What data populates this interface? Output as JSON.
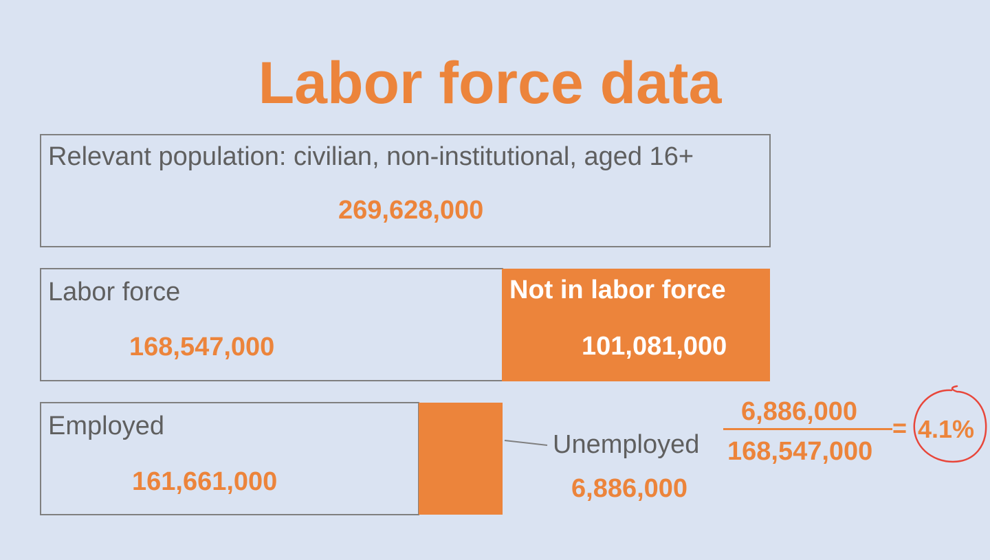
{
  "title": "Labor force data",
  "population": {
    "label": "Relevant population: civilian, non-institutional, aged 16+",
    "value": "269,628,000"
  },
  "labor_force": {
    "label": "Labor force",
    "value": "168,547,000"
  },
  "not_in_labor_force": {
    "label": "Not in labor force",
    "value": "101,081,000"
  },
  "employed": {
    "label": "Employed",
    "value": "161,661,000"
  },
  "unemployed": {
    "label": "Unemployed",
    "value": "6,886,000"
  },
  "rate": {
    "numerator": "6,886,000",
    "denominator": "168,547,000",
    "equals": "=",
    "result": "4.1%"
  },
  "colors": {
    "accent": "#ec843b",
    "background": "#dae3f2",
    "border": "#7f7f7f",
    "annotation": "#e8463a"
  }
}
